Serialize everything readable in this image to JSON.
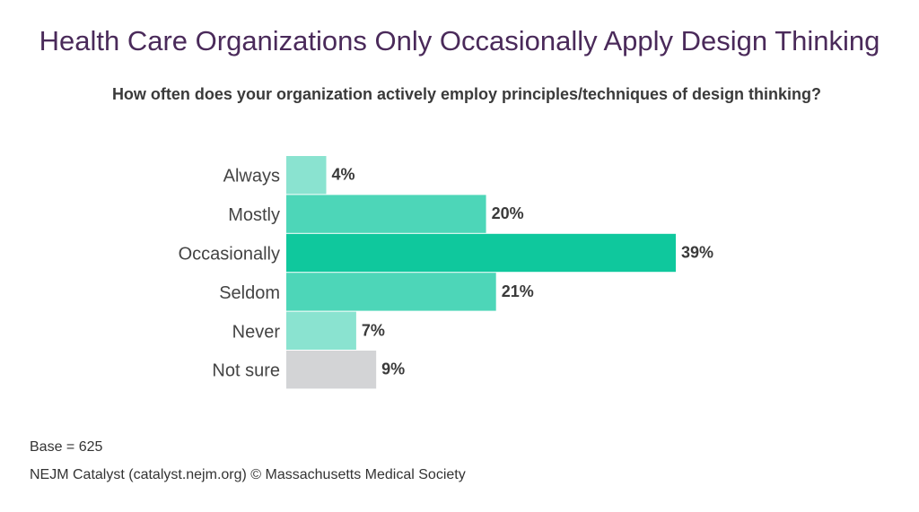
{
  "title": "Health Care Organizations Only Occasionally Apply Design Thinking",
  "subtitle": "How often does your organization actively employ principles/techniques of design thinking?",
  "footer": {
    "base": "Base = 625",
    "source": "NEJM Catalyst (catalyst.nejm.org) © Massachusetts Medical Society"
  },
  "chart_data": {
    "type": "bar",
    "orientation": "horizontal",
    "categories": [
      "Always",
      "Mostly",
      "Occasionally",
      "Seldom",
      "Never",
      "Not sure"
    ],
    "values": [
      4,
      20,
      39,
      21,
      7,
      9
    ],
    "value_labels": [
      "4%",
      "20%",
      "39%",
      "21%",
      "7%",
      "9%"
    ],
    "colors": [
      "#8ae3d0",
      "#4dd6b8",
      "#0fc89d",
      "#4dd6b8",
      "#8ae3d0",
      "#d3d4d6"
    ],
    "xlim": [
      0,
      39
    ],
    "grid": false
  }
}
